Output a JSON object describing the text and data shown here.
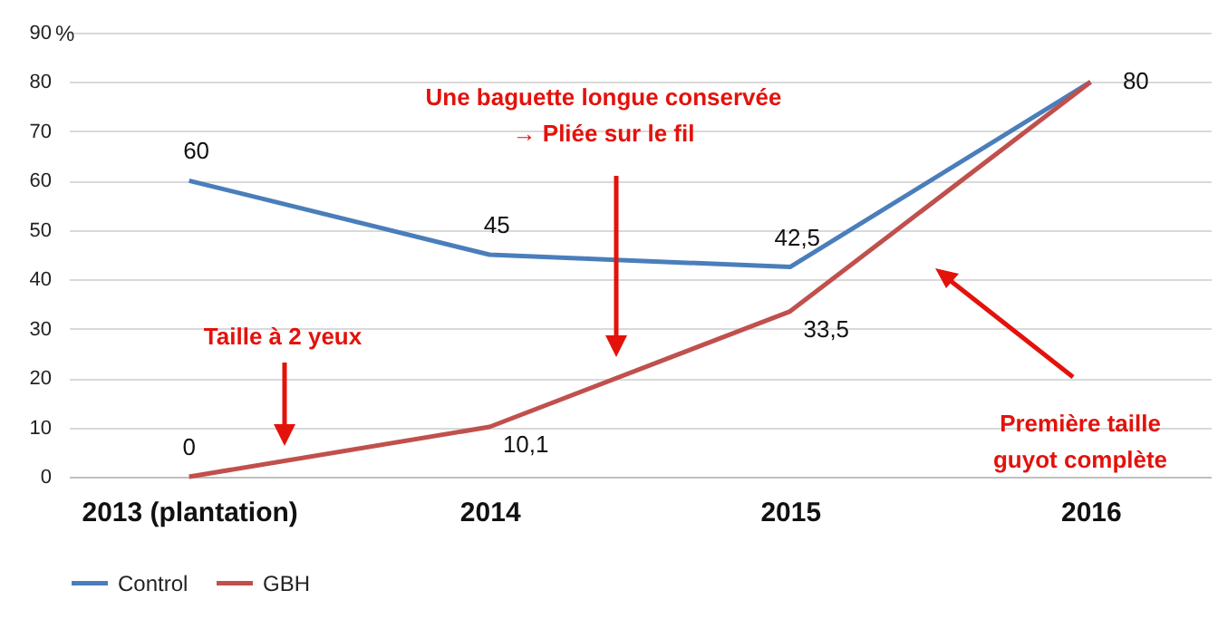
{
  "chart_data": {
    "type": "line",
    "ylabel": "%",
    "categories": [
      "2013 (plantation)",
      "2014",
      "2015",
      "2016"
    ],
    "series": [
      {
        "name": "Control",
        "color": "#4a7ebb",
        "values": [
          60,
          45,
          42.5,
          80
        ],
        "value_labels": [
          "60",
          "45",
          "42,5",
          "80"
        ]
      },
      {
        "name": "GBH",
        "color": "#c0504d",
        "values": [
          0,
          10.1,
          33.5,
          80
        ],
        "value_labels": [
          "0",
          "10,1",
          "33,5",
          null
        ]
      }
    ],
    "ylim": [
      0,
      90
    ],
    "yticks": [
      0,
      10,
      20,
      30,
      40,
      50,
      60,
      70,
      80,
      90
    ],
    "grid": "y",
    "legend": "bottom",
    "marker": "none",
    "line_style": "solid",
    "annotations": [
      "Une baguette longue conservée\n→ Pliée sur le fil",
      "Taille à 2 yeux",
      "Première taille\nguyot complète"
    ]
  }
}
